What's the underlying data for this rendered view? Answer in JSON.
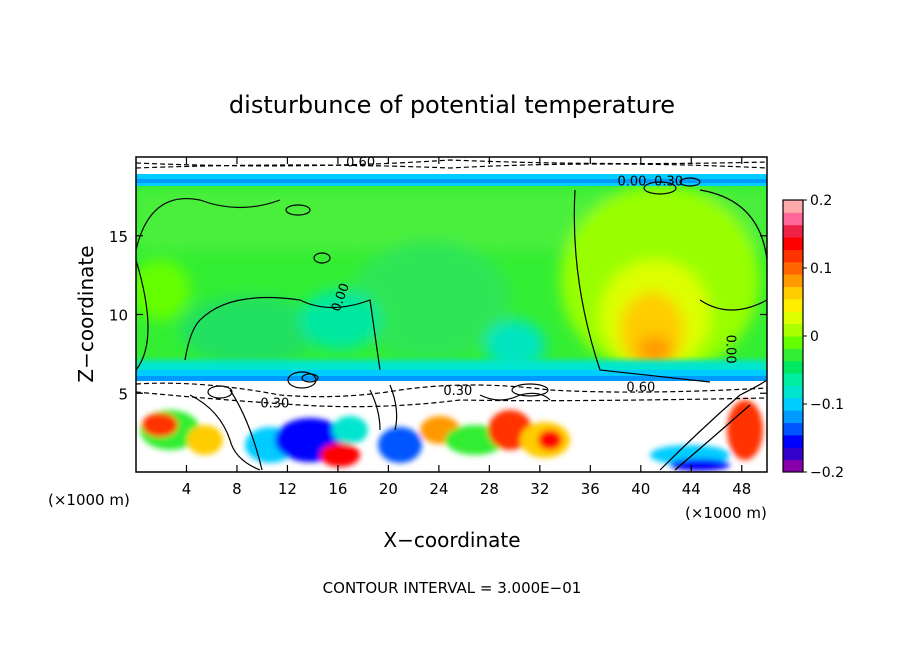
{
  "chart_data": {
    "type": "heatmap",
    "title": "disturbunce of potential temperature",
    "xlabel": "X−coordinate",
    "ylabel": "Z−coordinate",
    "x_unit_left": "(×1000 m)",
    "x_unit_right": "(×1000 m)",
    "footer": "CONTOUR INTERVAL = 3.000E−01",
    "xlim": [
      0,
      50
    ],
    "ylim": [
      0,
      20
    ],
    "x_ticks": [
      4,
      8,
      12,
      16,
      20,
      24,
      28,
      32,
      36,
      40,
      44,
      48
    ],
    "x_tick_labels": [
      "4",
      "8",
      "12",
      "16",
      "20",
      "24",
      "28",
      "32",
      "36",
      "40",
      "44",
      "48"
    ],
    "y_ticks": [
      5,
      10,
      15
    ],
    "y_tick_labels": [
      "5",
      "10",
      "15"
    ],
    "colorbar": {
      "min": -0.2,
      "max": 0.2,
      "ticks": [
        0.2,
        0.1,
        0,
        -0.1,
        -0.2
      ],
      "tick_labels": [
        "0.2",
        "0.1",
        "0",
        "−0.1",
        "−0.2"
      ],
      "colors": [
        "#8800aa",
        "#3300cc",
        "#0000ff",
        "#0055ff",
        "#0099ff",
        "#00ccff",
        "#00e5d0",
        "#00eea0",
        "#00e860",
        "#33ee33",
        "#66ff00",
        "#aaff00",
        "#ddff00",
        "#ffee00",
        "#ffcc00",
        "#ff9900",
        "#ff6600",
        "#ff3300",
        "#ff0000",
        "#ee2244",
        "#ff6699",
        "#ffaaaa"
      ]
    },
    "contour_labels": [
      {
        "text": "0.00",
        "x": 16.5,
        "z": 11.0,
        "rotate": -70
      },
      {
        "text": "0.60",
        "x": 17.8,
        "z": 19.4,
        "rotate": 0
      },
      {
        "text": "0.00",
        "x": 39.3,
        "z": 18.2,
        "rotate": 0
      },
      {
        "text": "0.30",
        "x": 42.2,
        "z": 18.2,
        "rotate": 0
      },
      {
        "text": "0.00",
        "x": 46.8,
        "z": 7.8,
        "rotate": 90
      },
      {
        "text": "0.30",
        "x": 25.5,
        "z": 4.9,
        "rotate": 0
      },
      {
        "text": "0.60",
        "x": 40.0,
        "z": 5.1,
        "rotate": 0
      },
      {
        "text": "0.30",
        "x": 11.0,
        "z": 4.1,
        "rotate": 0
      }
    ]
  }
}
